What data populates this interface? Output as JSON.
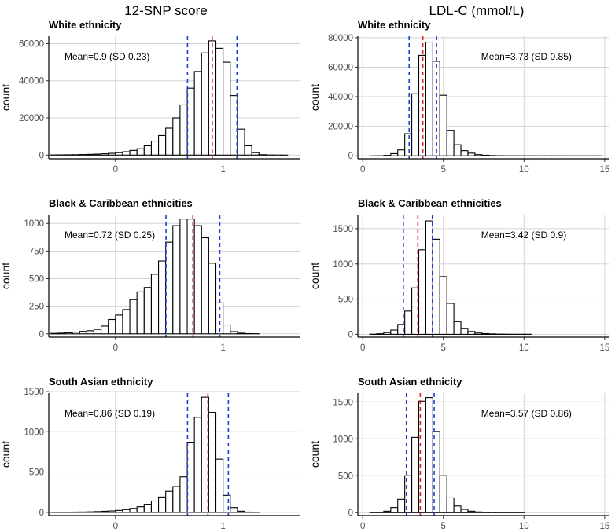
{
  "figure": {
    "column_titles": [
      "12-SNP score",
      "LDL-C (mmol/L)"
    ]
  },
  "chart_data": [
    {
      "type": "bar",
      "title": "White ethnicity",
      "column": "12-SNP score",
      "xlabel": "",
      "ylabel": "count",
      "xlim": [
        -0.62,
        1.72
      ],
      "ylim": [
        -2000,
        64000
      ],
      "xticks": [
        0,
        1
      ],
      "xtick_labels": [
        "0",
        "1"
      ],
      "yticks": [
        0,
        20000,
        40000,
        60000
      ],
      "ytick_labels": [
        "0",
        "20000",
        "40000",
        "60000"
      ],
      "bin_start": -0.6,
      "bin_width": 0.0667,
      "values": [
        80,
        110,
        150,
        200,
        280,
        380,
        520,
        700,
        950,
        1300,
        1800,
        2500,
        3400,
        5000,
        7500,
        10500,
        14500,
        20000,
        27000,
        36000,
        45000,
        55000,
        61500,
        57500,
        50000,
        32000,
        14000,
        5000,
        1300,
        200,
        40,
        10,
        2,
        0,
        0
      ],
      "mean": 0.9,
      "sd": 0.23,
      "annotation": "Mean=0.9 (SD 0.23)",
      "annotation_position": "top-left"
    },
    {
      "type": "bar",
      "title": "White ethnicity",
      "column": "LDL-C (mmol/L)",
      "xlabel": "",
      "ylabel": "count",
      "xlim": [
        -0.3,
        15.3
      ],
      "ylim": [
        -2000,
        81000
      ],
      "xticks": [
        0,
        5,
        10,
        15
      ],
      "xtick_labels": [
        "0",
        "5",
        "10",
        "15"
      ],
      "yticks": [
        0,
        20000,
        40000,
        60000,
        80000
      ],
      "ytick_labels": [
        "0",
        "20000",
        "40000",
        "60000",
        "80000"
      ],
      "bin_start": 0,
      "bin_width": 0.4348,
      "values": [
        0,
        5,
        40,
        300,
        1500,
        4000,
        15000,
        42000,
        68000,
        77000,
        64000,
        41000,
        17000,
        7500,
        3500,
        1800,
        800,
        400,
        200,
        110,
        60,
        35,
        20,
        12,
        8,
        5,
        3,
        2,
        2,
        1,
        1,
        1,
        1,
        1
      ],
      "mean": 3.73,
      "sd": 0.85,
      "annotation": "Mean=3.73 (SD 0.85)",
      "annotation_position": "top-right"
    },
    {
      "type": "bar",
      "title": "Black & Caribbean ethnicities",
      "column": "12-SNP score",
      "xlabel": "",
      "ylabel": "count",
      "xlim": [
        -0.62,
        1.72
      ],
      "ylim": [
        -30,
        1080
      ],
      "xticks": [
        0,
        1
      ],
      "xtick_labels": [
        "0",
        "1"
      ],
      "yticks": [
        0,
        250,
        500,
        750,
        1000
      ],
      "ytick_labels": [
        "0",
        "250",
        "500",
        "750",
        "1000"
      ],
      "bin_start": -0.6,
      "bin_width": 0.0667,
      "values": [
        4,
        6,
        10,
        15,
        22,
        28,
        40,
        70,
        130,
        170,
        220,
        310,
        380,
        420,
        540,
        660,
        830,
        980,
        1040,
        1040,
        980,
        870,
        640,
        280,
        80,
        20,
        6,
        2,
        1,
        0,
        0,
        0,
        0,
        0,
        0
      ],
      "mean": 0.72,
      "sd": 0.25,
      "annotation": "Mean=0.72 (SD 0.25)",
      "annotation_position": "top-left"
    },
    {
      "type": "bar",
      "title": "Black & Caribbean ethnicities",
      "column": "LDL-C (mmol/L)",
      "xlabel": "",
      "ylabel": "count",
      "xlim": [
        -0.3,
        15.3
      ],
      "ylim": [
        -40,
        1700
      ],
      "xticks": [
        0,
        5,
        10,
        15
      ],
      "xtick_labels": [
        "0",
        "5",
        "10",
        "15"
      ],
      "yticks": [
        0,
        500,
        1000,
        1500
      ],
      "ytick_labels": [
        "0",
        "500",
        "1000",
        "1500"
      ],
      "bin_start": 0,
      "bin_width": 0.4348,
      "values": [
        0,
        2,
        8,
        25,
        60,
        140,
        330,
        660,
        1200,
        1610,
        1350,
        820,
        440,
        180,
        85,
        40,
        18,
        10,
        6,
        3,
        2,
        1,
        1,
        1,
        0,
        0,
        0,
        0,
        0,
        0,
        0,
        0,
        0,
        0
      ],
      "mean": 3.42,
      "sd": 0.9,
      "annotation": "Mean=3.42 (SD 0.9)",
      "annotation_position": "top-right"
    },
    {
      "type": "bar",
      "title": "South Asian ethnicity",
      "column": "12-SNP score",
      "xlabel": "",
      "ylabel": "count",
      "xlim": [
        -0.62,
        1.72
      ],
      "ylim": [
        -40,
        1480
      ],
      "xticks": [
        0,
        1
      ],
      "xtick_labels": [
        "0",
        "1"
      ],
      "yticks": [
        0,
        500,
        1000,
        1500
      ],
      "ytick_labels": [
        "0",
        "500",
        "1000",
        "1500"
      ],
      "bin_start": -0.6,
      "bin_width": 0.0667,
      "values": [
        1,
        2,
        3,
        4,
        5,
        7,
        10,
        14,
        18,
        25,
        35,
        50,
        70,
        100,
        140,
        190,
        260,
        320,
        440,
        870,
        1180,
        1430,
        1240,
        660,
        210,
        60,
        15,
        4,
        1,
        0,
        0,
        0,
        0,
        0,
        0
      ],
      "mean": 0.86,
      "sd": 0.19,
      "annotation": "Mean=0.86 (SD 0.19)",
      "annotation_position": "top-left"
    },
    {
      "type": "bar",
      "title": "South Asian ethnicity",
      "column": "LDL-C (mmol/L)",
      "xlabel": "",
      "ylabel": "count",
      "xlim": [
        -0.3,
        15.3
      ],
      "ylim": [
        -40,
        1620
      ],
      "xticks": [
        0,
        5,
        10,
        15
      ],
      "xtick_labels": [
        "0",
        "5",
        "10",
        "15"
      ],
      "yticks": [
        0,
        500,
        1000,
        1500
      ],
      "ytick_labels": [
        "0",
        "500",
        "1000",
        "1500"
      ],
      "bin_start": 0,
      "bin_width": 0.4348,
      "values": [
        0,
        1,
        5,
        20,
        70,
        180,
        500,
        1020,
        1510,
        1560,
        1100,
        500,
        200,
        90,
        45,
        20,
        10,
        5,
        3,
        2,
        1,
        1,
        1,
        0,
        0,
        0,
        0,
        0,
        0,
        0,
        0,
        0,
        0,
        0
      ],
      "mean": 3.57,
      "sd": 0.86,
      "annotation": "Mean=3.57 (SD 0.86)",
      "annotation_position": "top-right"
    }
  ]
}
